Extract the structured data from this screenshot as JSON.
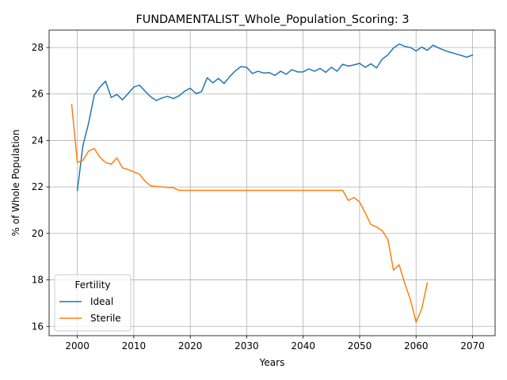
{
  "chart_data": {
    "type": "line",
    "title": "FUNDAMENTALIST_Whole_Population_Scoring: 3",
    "xlabel": "Years",
    "ylabel": "% of Whole Population",
    "xlim": [
      1995,
      2074
    ],
    "ylim": [
      15.6,
      28.75
    ],
    "x_ticks": [
      2000,
      2010,
      2020,
      2030,
      2040,
      2050,
      2060,
      2070
    ],
    "y_ticks": [
      16,
      18,
      20,
      22,
      24,
      26,
      28
    ],
    "grid": true,
    "legend": {
      "title": "Fertility",
      "placement": "lower-left"
    },
    "series": [
      {
        "name": "Ideal",
        "color": "#1f77b4",
        "x": [
          2000,
          2001,
          2002,
          2003,
          2004,
          2005,
          2006,
          2007,
          2008,
          2009,
          2010,
          2011,
          2012,
          2013,
          2014,
          2015,
          2016,
          2017,
          2018,
          2019,
          2020,
          2021,
          2022,
          2023,
          2024,
          2025,
          2026,
          2027,
          2028,
          2029,
          2030,
          2031,
          2032,
          2033,
          2034,
          2035,
          2036,
          2037,
          2038,
          2039,
          2040,
          2041,
          2042,
          2043,
          2044,
          2045,
          2046,
          2047,
          2048,
          2049,
          2050,
          2051,
          2052,
          2053,
          2054,
          2055,
          2056,
          2057,
          2058,
          2059,
          2060,
          2061,
          2062,
          2063,
          2064,
          2065,
          2066,
          2067,
          2068,
          2069,
          2070
        ],
        "values": [
          21.85,
          23.8,
          24.75,
          25.95,
          26.3,
          26.55,
          25.85,
          25.98,
          25.75,
          26.02,
          26.3,
          26.38,
          26.12,
          25.88,
          25.72,
          25.83,
          25.9,
          25.8,
          25.92,
          26.12,
          26.25,
          26.02,
          26.1,
          26.7,
          26.48,
          26.67,
          26.45,
          26.75,
          27.0,
          27.18,
          27.15,
          26.88,
          26.98,
          26.9,
          26.92,
          26.8,
          26.98,
          26.85,
          27.05,
          26.95,
          26.95,
          27.08,
          26.98,
          27.1,
          26.93,
          27.15,
          26.98,
          27.28,
          27.2,
          27.25,
          27.32,
          27.15,
          27.3,
          27.12,
          27.5,
          27.68,
          27.98,
          28.15,
          28.05,
          28.0,
          27.85,
          28.02,
          27.88,
          28.1,
          27.98,
          27.88,
          27.8,
          27.73,
          27.66,
          27.58,
          27.68
        ]
      },
      {
        "name": "Sterile",
        "color": "#ff7f0e",
        "x": [
          1999,
          2000,
          2001,
          2002,
          2003,
          2004,
          2005,
          2006,
          2007,
          2008,
          2009,
          2010,
          2011,
          2012,
          2013,
          2014,
          2015,
          2016,
          2017,
          2018,
          2019,
          2020,
          2021,
          2022,
          2023,
          2024,
          2025,
          2026,
          2027,
          2028,
          2029,
          2030,
          2031,
          2032,
          2033,
          2034,
          2035,
          2036,
          2037,
          2038,
          2039,
          2040,
          2041,
          2042,
          2043,
          2044,
          2045,
          2046,
          2047,
          2048,
          2049,
          2050,
          2051,
          2052,
          2053,
          2054,
          2055,
          2056,
          2057,
          2058,
          2059,
          2060,
          2061,
          2062
        ],
        "values": [
          25.55,
          23.05,
          23.15,
          23.55,
          23.65,
          23.28,
          23.05,
          22.98,
          23.25,
          22.82,
          22.75,
          22.65,
          22.55,
          22.25,
          22.05,
          22.02,
          22.0,
          21.98,
          21.97,
          21.85,
          21.85,
          21.85,
          21.85,
          21.85,
          21.85,
          21.85,
          21.85,
          21.85,
          21.85,
          21.85,
          21.85,
          21.85,
          21.85,
          21.85,
          21.85,
          21.85,
          21.85,
          21.85,
          21.85,
          21.85,
          21.85,
          21.85,
          21.85,
          21.85,
          21.85,
          21.85,
          21.85,
          21.85,
          21.85,
          21.42,
          21.55,
          21.35,
          20.88,
          20.38,
          20.28,
          20.12,
          19.75,
          18.42,
          18.65,
          17.85,
          17.15,
          16.18,
          16.75,
          17.88
        ]
      }
    ]
  }
}
